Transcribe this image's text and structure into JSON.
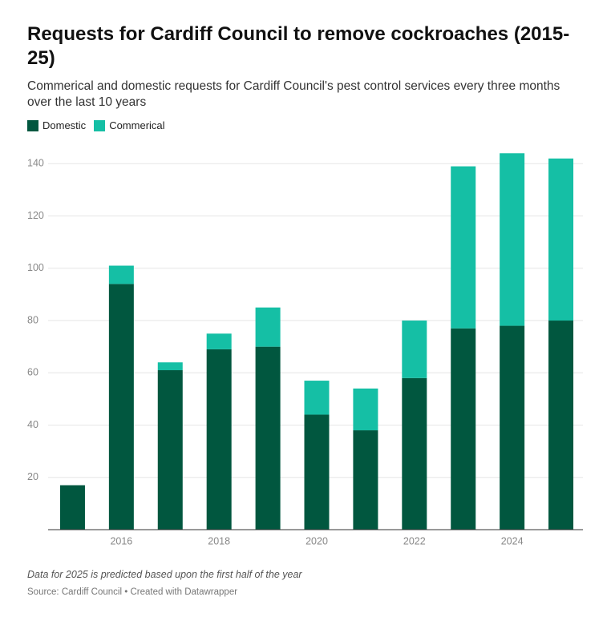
{
  "chart_data": {
    "type": "stacked_bar",
    "title": "Requests for Cardiff Council to remove cockroaches (2015-25)",
    "subtitle": "Commerical and domestic requests for Cardiff Council's pest control services every three months over the last 10 years",
    "categories": [
      null,
      "2016",
      null,
      "2018",
      null,
      "2020",
      null,
      "2022",
      null,
      "2024",
      null
    ],
    "series": [
      {
        "name": "Domestic",
        "color": "#01573f",
        "values": [
          17,
          94,
          61,
          69,
          70,
          44,
          38,
          58,
          77,
          78,
          80
        ]
      },
      {
        "name": "Commerical",
        "color": "#15bfa5",
        "values": [
          0,
          7,
          3,
          6,
          15,
          13,
          16,
          22,
          62,
          66,
          62
        ]
      }
    ],
    "ylim": [
      0,
      145
    ],
    "yticks": [
      20,
      40,
      60,
      80,
      100,
      120,
      140
    ],
    "grid": true,
    "note": "Data for 2025 is predicted based upon the first half of the year",
    "source": "Source: Cardiff Council • Created with Datawrapper"
  }
}
